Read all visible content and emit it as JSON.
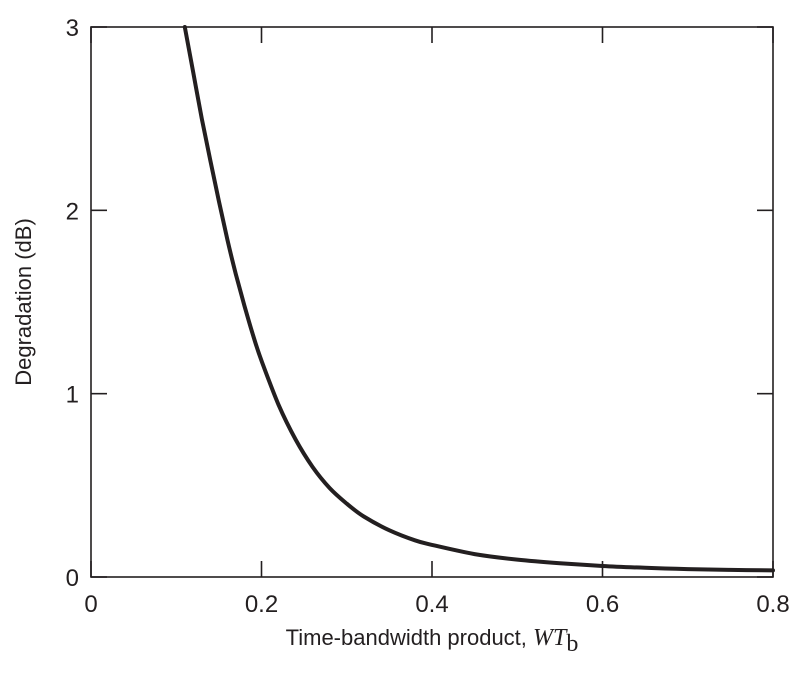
{
  "chart_data": {
    "type": "line",
    "title": "",
    "xlabel": "Time-bandwidth product, ",
    "xlabel_var_main": "WT",
    "xlabel_var_sub": "b",
    "ylabel": "Degradation (dB)",
    "xlim": [
      0,
      0.8
    ],
    "ylim": [
      0,
      3
    ],
    "x_ticks": [
      0,
      0.2,
      0.4,
      0.6,
      0.8
    ],
    "x_tick_labels": [
      "0",
      "0.2",
      "0.4",
      "0.6",
      "0.8"
    ],
    "y_ticks": [
      0,
      1,
      2,
      3
    ],
    "y_tick_labels": [
      "0",
      "1",
      "2",
      "3"
    ],
    "grid": false,
    "line_color": "#231f20",
    "series": [
      {
        "x": [
          0.11,
          0.12,
          0.13,
          0.14,
          0.15,
          0.16,
          0.17,
          0.18,
          0.19,
          0.2,
          0.22,
          0.24,
          0.26,
          0.28,
          0.3,
          0.32,
          0.35,
          0.38,
          0.4,
          0.45,
          0.5,
          0.55,
          0.6,
          0.65,
          0.7,
          0.75,
          0.8
        ],
        "y": [
          3.0,
          2.75,
          2.5,
          2.27,
          2.05,
          1.84,
          1.65,
          1.48,
          1.32,
          1.18,
          0.94,
          0.75,
          0.6,
          0.485,
          0.4,
          0.33,
          0.255,
          0.2,
          0.175,
          0.125,
          0.095,
          0.075,
          0.06,
          0.05,
          0.043,
          0.039,
          0.036
        ]
      }
    ]
  }
}
